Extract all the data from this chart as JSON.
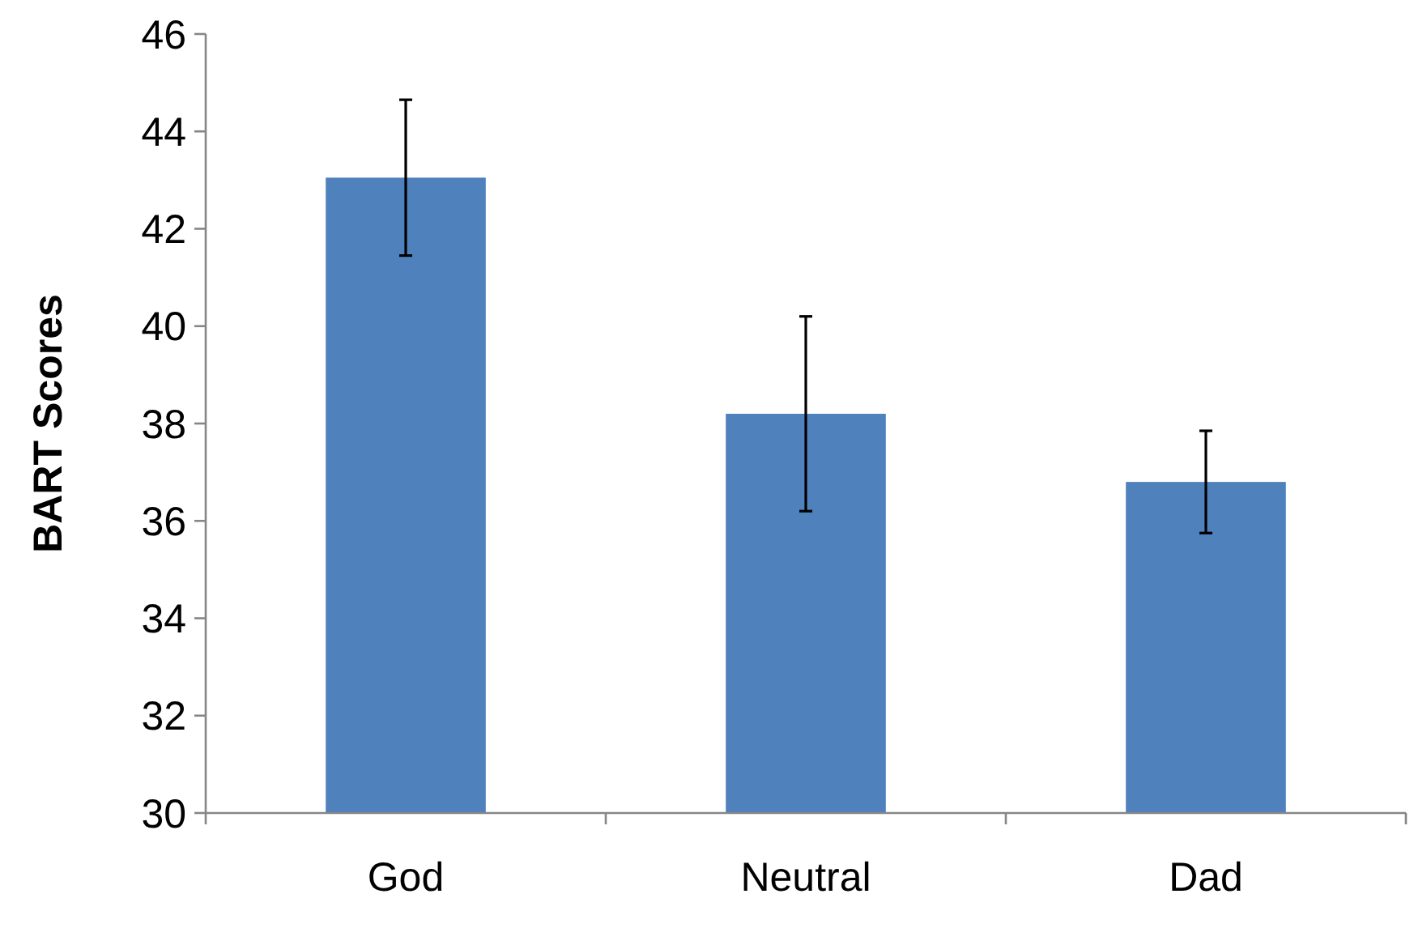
{
  "chart_data": {
    "type": "bar",
    "ylabel": "BART Scores",
    "categories": [
      "God",
      "Neutral",
      "Dad"
    ],
    "values": [
      43.05,
      38.2,
      36.8
    ],
    "errors": [
      1.6,
      2.0,
      1.05
    ],
    "color": "#4f81bd",
    "ylim": [
      30,
      46
    ],
    "yticks": [
      30,
      32,
      34,
      36,
      38,
      40,
      42,
      44,
      46
    ],
    "grid": false
  }
}
